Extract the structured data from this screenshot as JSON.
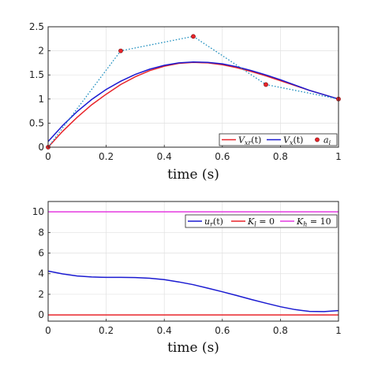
{
  "chart_data": [
    {
      "type": "line",
      "xlabel": "time (s)",
      "ylabel": "",
      "xlim": [
        0,
        1
      ],
      "ylim": [
        0,
        2.5
      ],
      "xticks": [
        "0",
        "0.2",
        "0.4",
        "0.6",
        "0.8",
        "1"
      ],
      "yticks": [
        "0",
        "0.5",
        "1",
        "1.5",
        "2",
        "2.5"
      ],
      "grid": true,
      "legend": "bottom-right",
      "series": [
        {
          "name": "V_xr(t)",
          "color": "#e8242a",
          "style": "solid",
          "x": [
            0,
            0.05,
            0.1,
            0.15,
            0.2,
            0.25,
            0.3,
            0.35,
            0.4,
            0.45,
            0.5,
            0.55,
            0.6,
            0.65,
            0.7,
            0.75,
            0.8,
            0.85,
            0.9,
            0.95,
            1
          ],
          "y": [
            0,
            0.33,
            0.62,
            0.88,
            1.1,
            1.3,
            1.46,
            1.59,
            1.68,
            1.74,
            1.76,
            1.75,
            1.71,
            1.65,
            1.57,
            1.48,
            1.38,
            1.28,
            1.18,
            1.09,
            1.0
          ]
        },
        {
          "name": "V_x(t)",
          "color": "#1a1ad1",
          "style": "solid",
          "x": [
            0,
            0.05,
            0.1,
            0.15,
            0.2,
            0.25,
            0.3,
            0.35,
            0.4,
            0.45,
            0.5,
            0.55,
            0.6,
            0.65,
            0.7,
            0.75,
            0.8,
            0.85,
            0.9,
            0.95,
            1
          ],
          "y": [
            0.12,
            0.45,
            0.74,
            0.99,
            1.2,
            1.37,
            1.51,
            1.62,
            1.7,
            1.75,
            1.77,
            1.76,
            1.73,
            1.67,
            1.59,
            1.5,
            1.4,
            1.29,
            1.18,
            1.09,
            1.0
          ]
        },
        {
          "name": "a_i",
          "color": "#1f8fbf",
          "marker_color": "#e8242a",
          "style": "dotted",
          "x": [
            0,
            0.25,
            0.5,
            0.75,
            1
          ],
          "y": [
            0,
            2.0,
            2.3,
            1.3,
            1.0
          ]
        }
      ],
      "legend_entries": [
        {
          "label": "V",
          "sub": "xr",
          "suffix": "(t)",
          "color": "#e8242a",
          "kind": "line"
        },
        {
          "label": "V",
          "sub": "x",
          "suffix": "(t)",
          "color": "#1a1ad1",
          "kind": "line"
        },
        {
          "label": "a",
          "sub": "i",
          "suffix": "",
          "color": "#e8242a",
          "kind": "marker"
        }
      ]
    },
    {
      "type": "line",
      "xlabel": "time (s)",
      "ylabel": "",
      "xlim": [
        0,
        1
      ],
      "ylim": [
        -0.6,
        11
      ],
      "xticks": [
        "0",
        "0.2",
        "0.4",
        "0.6",
        "0.8",
        "1"
      ],
      "yticks": [
        "0",
        "2",
        "4",
        "6",
        "8",
        "10"
      ],
      "grid": true,
      "legend": "top-right",
      "series": [
        {
          "name": "u_r(t)",
          "color": "#1a1ad1",
          "style": "solid",
          "x": [
            0,
            0.05,
            0.1,
            0.15,
            0.2,
            0.25,
            0.3,
            0.35,
            0.4,
            0.45,
            0.5,
            0.55,
            0.6,
            0.65,
            0.7,
            0.75,
            0.8,
            0.85,
            0.9,
            0.95,
            1
          ],
          "y": [
            4.25,
            3.98,
            3.78,
            3.68,
            3.64,
            3.64,
            3.63,
            3.56,
            3.42,
            3.2,
            2.93,
            2.6,
            2.25,
            1.88,
            1.5,
            1.14,
            0.8,
            0.52,
            0.35,
            0.32,
            0.42
          ]
        },
        {
          "name": "K_l = 0",
          "color": "#e8242a",
          "style": "solid",
          "x": [
            0,
            1
          ],
          "y": [
            0,
            0
          ]
        },
        {
          "name": "K_h = 10",
          "color": "#e43ae0",
          "style": "solid",
          "x": [
            0,
            1
          ],
          "y": [
            10,
            10
          ]
        }
      ],
      "legend_entries": [
        {
          "label": "u",
          "sub": "r",
          "suffix": "(t)",
          "color": "#1a1ad1",
          "kind": "line"
        },
        {
          "label": "K",
          "sub": "l",
          "suffix": " = 0",
          "color": "#e8242a",
          "kind": "line"
        },
        {
          "label": "K",
          "sub": "h",
          "suffix": " = 10",
          "color": "#e43ae0",
          "kind": "line"
        }
      ]
    }
  ]
}
